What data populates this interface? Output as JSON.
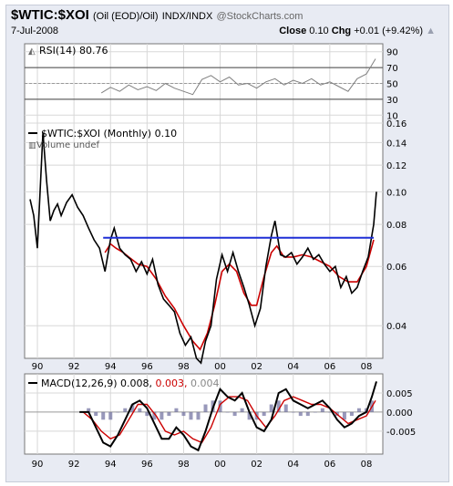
{
  "header": {
    "symbol": "$WTIC:$XOI",
    "name": "(Oil (EOD)/Oil)",
    "exchange": "INDX/INDX",
    "source": "@StockCharts.com",
    "date": "7-Jul-2008",
    "close_label": "Close",
    "close_value": "0.10",
    "chg_label": "Chg",
    "chg_value": "+0.01 (+9.42%)",
    "chg_arrow": "▲"
  },
  "chart_data": [
    {
      "type": "line",
      "panel": "rsi",
      "legend": "RSI(14) 80.76",
      "yticks": [
        "90",
        "70",
        "50",
        "30",
        "10"
      ],
      "ylim": [
        0,
        100
      ],
      "reference_lines": [
        70,
        50,
        30
      ],
      "series": [
        {
          "name": "RSI(14)",
          "color": "#808080",
          "x": [
            1993.5,
            1994,
            1994.5,
            1995,
            1995.5,
            1996,
            1996.5,
            1997,
            1997.5,
            1998,
            1998.5,
            1999,
            1999.5,
            2000,
            2000.5,
            2001,
            2001.5,
            2002,
            2002.5,
            2003,
            2003.5,
            2004,
            2004.5,
            2005,
            2005.5,
            2006,
            2006.5,
            2007,
            2007.5,
            2008,
            2008.5
          ],
          "values": [
            38,
            45,
            40,
            48,
            42,
            46,
            41,
            50,
            44,
            40,
            36,
            55,
            60,
            52,
            58,
            48,
            50,
            44,
            52,
            56,
            48,
            54,
            50,
            56,
            48,
            52,
            46,
            40,
            56,
            62,
            81
          ]
        }
      ]
    },
    {
      "type": "line",
      "panel": "price",
      "legend": "$WTIC:$XOI (Monthly) 0.10",
      "volume_label": "Volume undef",
      "yticks": [
        "0.16",
        "0.14",
        "0.12",
        "0.10",
        "0.08",
        "0.06",
        "0.04"
      ],
      "ylim": [
        0.032,
        0.16
      ],
      "ytick_values": [
        0.16,
        0.14,
        0.12,
        0.1,
        0.08,
        0.06,
        0.04
      ],
      "log_scale": true,
      "xticks": [
        "90",
        "92",
        "94",
        "96",
        "98",
        "00",
        "02",
        "04",
        "06",
        "08"
      ],
      "xlim": [
        1989.3,
        2008.9
      ],
      "series": [
        {
          "name": "$WTIC:$XOI",
          "color": "#000000",
          "x": [
            1989.6,
            1989.8,
            1990.0,
            1990.3,
            1990.5,
            1990.7,
            1990.9,
            1991.1,
            1991.3,
            1991.6,
            1991.9,
            1992.2,
            1992.5,
            1992.8,
            1993.1,
            1993.4,
            1993.7,
            1994.0,
            1994.2,
            1994.5,
            1994.8,
            1995.1,
            1995.4,
            1995.7,
            1996.0,
            1996.3,
            1996.6,
            1996.9,
            1997.2,
            1997.5,
            1997.8,
            1998.1,
            1998.4,
            1998.7,
            1998.95,
            1999.2,
            1999.5,
            1999.8,
            2000.1,
            2000.4,
            2000.7,
            2001.0,
            2001.3,
            2001.6,
            2001.9,
            2002.2,
            2002.5,
            2002.8,
            2003.0,
            2003.3,
            2003.6,
            2003.9,
            2004.2,
            2004.5,
            2004.8,
            2005.1,
            2005.4,
            2005.7,
            2006.0,
            2006.3,
            2006.6,
            2006.9,
            2007.2,
            2007.5,
            2007.8,
            2008.1,
            2008.4,
            2008.55
          ],
          "values": [
            0.095,
            0.085,
            0.068,
            0.15,
            0.108,
            0.082,
            0.088,
            0.092,
            0.085,
            0.093,
            0.098,
            0.09,
            0.085,
            0.078,
            0.072,
            0.068,
            0.058,
            0.072,
            0.078,
            0.068,
            0.065,
            0.063,
            0.058,
            0.062,
            0.057,
            0.063,
            0.053,
            0.048,
            0.046,
            0.044,
            0.038,
            0.035,
            0.037,
            0.032,
            0.031,
            0.036,
            0.04,
            0.055,
            0.065,
            0.058,
            0.066,
            0.058,
            0.052,
            0.046,
            0.04,
            0.045,
            0.06,
            0.074,
            0.082,
            0.065,
            0.064,
            0.066,
            0.061,
            0.064,
            0.068,
            0.063,
            0.065,
            0.061,
            0.058,
            0.06,
            0.052,
            0.056,
            0.05,
            0.052,
            0.058,
            0.064,
            0.08,
            0.1
          ]
        },
        {
          "name": "Trend",
          "color": "#cc0000",
          "x": [
            1993.7,
            1994.0,
            1994.3,
            1994.7,
            1995.0,
            1995.5,
            1996.0,
            1996.5,
            1997.0,
            1997.5,
            1998.0,
            1998.5,
            1998.9,
            1999.3,
            1999.7,
            2000.1,
            2000.5,
            2000.9,
            2001.3,
            2001.7,
            2002.0,
            2002.4,
            2002.8,
            2003.1,
            2003.5,
            2004.0,
            2004.5,
            2005.0,
            2005.5,
            2006.0,
            2006.5,
            2007.0,
            2007.5,
            2008.0,
            2008.4
          ],
          "values": [
            0.066,
            0.07,
            0.068,
            0.066,
            0.064,
            0.061,
            0.06,
            0.055,
            0.049,
            0.045,
            0.04,
            0.036,
            0.034,
            0.038,
            0.046,
            0.058,
            0.061,
            0.058,
            0.05,
            0.046,
            0.046,
            0.056,
            0.066,
            0.069,
            0.064,
            0.064,
            0.065,
            0.064,
            0.062,
            0.06,
            0.056,
            0.054,
            0.054,
            0.06,
            0.072
          ]
        },
        {
          "name": "Horizontal line",
          "color": "#1f2fd6",
          "x": [
            1993.6,
            2008.4
          ],
          "values": [
            0.073,
            0.073
          ]
        }
      ]
    },
    {
      "type": "line",
      "panel": "macd",
      "legend_prefix": "MACD(12,26,9)",
      "legend_macd": "0.008,",
      "legend_signal": "0.003,",
      "legend_hist": "0.004",
      "yticks": [
        "0.005",
        "0.000",
        "-0.005"
      ],
      "ytick_values": [
        0.005,
        0.0,
        -0.005
      ],
      "ylim": [
        -0.011,
        0.01
      ],
      "xticks": [
        "90",
        "92",
        "94",
        "96",
        "98",
        "00",
        "02",
        "04",
        "06",
        "08"
      ],
      "xlim": [
        1989.3,
        2008.9
      ],
      "series": [
        {
          "name": "MACD",
          "color": "#000000",
          "x": [
            1992.3,
            1992.8,
            1993.2,
            1993.6,
            1994.0,
            1994.4,
            1994.8,
            1995.2,
            1995.6,
            1996.0,
            1996.4,
            1996.8,
            1997.2,
            1997.6,
            1998.0,
            1998.4,
            1998.8,
            1999.2,
            1999.6,
            2000.0,
            2000.4,
            2000.8,
            2001.2,
            2001.6,
            2002.0,
            2002.4,
            2002.8,
            2003.2,
            2003.6,
            2004.0,
            2004.4,
            2004.8,
            2005.2,
            2005.6,
            2006.0,
            2006.4,
            2006.8,
            2007.2,
            2007.6,
            2008.0,
            2008.3,
            2008.55
          ],
          "values": [
            0.0,
            0.0,
            -0.004,
            -0.008,
            -0.009,
            -0.006,
            -0.002,
            0.002,
            0.003,
            0.001,
            -0.003,
            -0.007,
            -0.007,
            -0.004,
            -0.006,
            -0.009,
            -0.01,
            -0.005,
            0.001,
            0.006,
            0.004,
            0.003,
            0.005,
            0.0,
            -0.004,
            -0.005,
            -0.002,
            0.005,
            0.006,
            0.003,
            0.002,
            0.001,
            0.002,
            0.003,
            0.001,
            -0.002,
            -0.004,
            -0.003,
            -0.001,
            0.0,
            0.004,
            0.008
          ]
        },
        {
          "name": "Signal",
          "color": "#cc0000",
          "x": [
            1992.5,
            1993.0,
            1993.5,
            1994.0,
            1994.5,
            1995.0,
            1995.5,
            1996.0,
            1996.5,
            1997.0,
            1997.5,
            1998.0,
            1998.5,
            1999.0,
            1999.5,
            2000.0,
            2000.5,
            2001.0,
            2001.5,
            2002.0,
            2002.5,
            2003.0,
            2003.5,
            2004.0,
            2004.5,
            2005.0,
            2005.5,
            2006.0,
            2006.5,
            2007.0,
            2007.5,
            2008.0,
            2008.5
          ],
          "values": [
            0.0,
            -0.002,
            -0.005,
            -0.007,
            -0.006,
            -0.002,
            0.002,
            0.002,
            -0.001,
            -0.005,
            -0.006,
            -0.005,
            -0.007,
            -0.008,
            -0.004,
            0.002,
            0.004,
            0.004,
            0.003,
            -0.001,
            -0.004,
            -0.001,
            0.003,
            0.004,
            0.003,
            0.002,
            0.002,
            0.001,
            -0.001,
            -0.003,
            -0.002,
            -0.001,
            0.003
          ]
        },
        {
          "name": "Histogram",
          "color": "#6c6c9c",
          "x": [
            1992.4,
            1992.8,
            1993.2,
            1993.6,
            1994.0,
            1994.4,
            1994.8,
            1995.2,
            1995.6,
            1996.0,
            1996.4,
            1996.8,
            1997.2,
            1997.6,
            1998.0,
            1998.4,
            1998.8,
            1999.2,
            1999.6,
            2000.0,
            2000.4,
            2000.8,
            2001.2,
            2001.6,
            2002.0,
            2002.4,
            2002.8,
            2003.2,
            2003.6,
            2004.0,
            2004.4,
            2004.8,
            2005.2,
            2005.6,
            2006.0,
            2006.4,
            2006.8,
            2007.2,
            2007.6,
            2008.0,
            2008.3
          ],
          "values": [
            0.0,
            0.001,
            -0.001,
            -0.002,
            -0.002,
            0.0,
            0.001,
            0.002,
            0.001,
            -0.001,
            -0.002,
            -0.002,
            -0.001,
            0.001,
            -0.001,
            -0.002,
            -0.002,
            0.002,
            0.003,
            0.003,
            0.0,
            -0.001,
            0.001,
            -0.002,
            -0.002,
            -0.001,
            0.002,
            0.003,
            0.002,
            0.0,
            -0.001,
            -0.001,
            0.0,
            0.001,
            0.0,
            -0.001,
            -0.002,
            -0.001,
            0.001,
            0.001,
            0.003
          ]
        }
      ]
    }
  ]
}
